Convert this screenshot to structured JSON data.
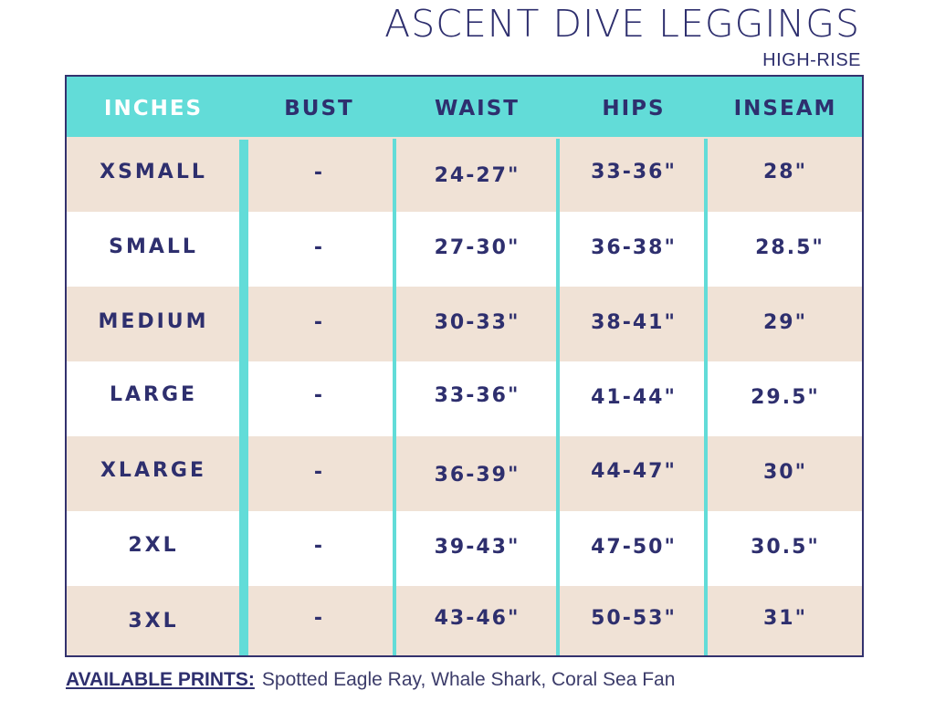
{
  "title": "ASCENT DIVE LEGGINGS",
  "subtitle": "HIGH-RISE",
  "table": {
    "headers": [
      "INCHES",
      "BUST",
      "WAIST",
      "HIPS",
      "INSEAM"
    ],
    "rows": [
      [
        "XSMALL",
        "-",
        "24-27\"",
        "33-36\"",
        "28\""
      ],
      [
        "SMALL",
        "-",
        "27-30\"",
        "36-38\"",
        "28.5\""
      ],
      [
        "MEDIUM",
        "-",
        "30-33\"",
        "38-41\"",
        "29\""
      ],
      [
        "LARGE",
        "-",
        "33-36\"",
        "41-44\"",
        "29.5\""
      ],
      [
        "XLARGE",
        "-",
        "36-39\"",
        "44-47\"",
        "30\""
      ],
      [
        "2XL",
        "-",
        "39-43\"",
        "47-50\"",
        "30.5\""
      ],
      [
        "3XL",
        "-",
        "43-46\"",
        "50-53\"",
        "31\""
      ]
    ]
  },
  "footer": {
    "label": "AVAILABLE PRINTS:",
    "prints": "Spotted Eagle Ray, Whale Shark, Coral Sea Fan"
  },
  "colors": {
    "navy": "#2e2f6e",
    "aqua": "#62dcd8",
    "beige": "#f0e2d6"
  }
}
